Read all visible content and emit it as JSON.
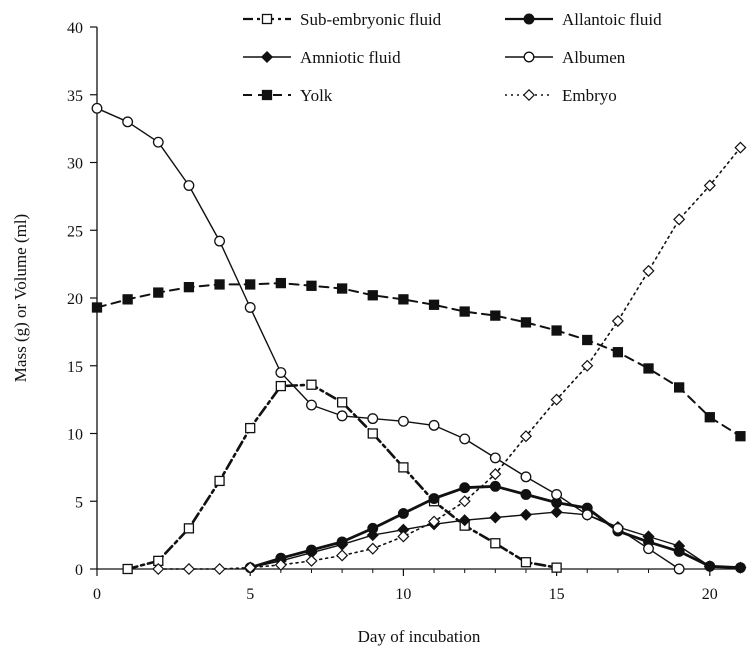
{
  "chart_data": {
    "type": "line",
    "xlabel": "Day of incubation",
    "ylabel": "Mass (g) or Volume (ml)",
    "xlim": [
      0,
      21
    ],
    "ylim": [
      0,
      40
    ],
    "x_ticks": [
      "0",
      "5",
      "10",
      "15",
      "20"
    ],
    "y_ticks": [
      "0",
      "5",
      "10",
      "15",
      "20",
      "25",
      "30",
      "35",
      "40"
    ],
    "grid": false,
    "legend_position": "top-right",
    "series": [
      {
        "name": "Sub-embryonic fluid",
        "style": "dashdot",
        "marker": "open-square",
        "color": "#111111",
        "points": [
          [
            1,
            0
          ],
          [
            2,
            0.6
          ],
          [
            3,
            3.0
          ],
          [
            4,
            6.5
          ],
          [
            5,
            10.4
          ],
          [
            6,
            13.5
          ],
          [
            7,
            13.6
          ],
          [
            8,
            12.3
          ],
          [
            9,
            10.0
          ],
          [
            10,
            7.5
          ],
          [
            11,
            5.0
          ],
          [
            12,
            3.2
          ],
          [
            13,
            1.9
          ],
          [
            14,
            0.5
          ],
          [
            15,
            0.1
          ]
        ]
      },
      {
        "name": "Allantoic fluid",
        "style": "solid-thick",
        "marker": "filled-circle",
        "color": "#111111",
        "points": [
          [
            5,
            0.1
          ],
          [
            6,
            0.8
          ],
          [
            7,
            1.4
          ],
          [
            8,
            2.0
          ],
          [
            9,
            3.0
          ],
          [
            10,
            4.1
          ],
          [
            11,
            5.2
          ],
          [
            12,
            6.0
          ],
          [
            13,
            6.1
          ],
          [
            14,
            5.5
          ],
          [
            15,
            4.9
          ],
          [
            16,
            4.5
          ],
          [
            17,
            2.8
          ],
          [
            18,
            2.0
          ],
          [
            19,
            1.3
          ],
          [
            20,
            0.2
          ],
          [
            21,
            0.1
          ]
        ]
      },
      {
        "name": "Amniotic fluid",
        "style": "solid",
        "marker": "filled-diamond",
        "color": "#111111",
        "points": [
          [
            5,
            0.1
          ],
          [
            6,
            0.6
          ],
          [
            7,
            1.2
          ],
          [
            8,
            1.8
          ],
          [
            9,
            2.5
          ],
          [
            10,
            2.9
          ],
          [
            11,
            3.3
          ],
          [
            12,
            3.6
          ],
          [
            13,
            3.8
          ],
          [
            14,
            4.0
          ],
          [
            15,
            4.2
          ],
          [
            16,
            4.0
          ],
          [
            17,
            3.1
          ],
          [
            18,
            2.4
          ],
          [
            19,
            1.7
          ],
          [
            20,
            0.2
          ],
          [
            21,
            0.1
          ]
        ]
      },
      {
        "name": "Albumen",
        "style": "solid",
        "marker": "open-circle",
        "color": "#111111",
        "points": [
          [
            0,
            34.0
          ],
          [
            1,
            33.0
          ],
          [
            2,
            31.5
          ],
          [
            3,
            28.3
          ],
          [
            4,
            24.2
          ],
          [
            5,
            19.3
          ],
          [
            6,
            14.5
          ],
          [
            7,
            12.1
          ],
          [
            8,
            11.3
          ],
          [
            9,
            11.1
          ],
          [
            10,
            10.9
          ],
          [
            11,
            10.6
          ],
          [
            12,
            9.6
          ],
          [
            13,
            8.2
          ],
          [
            14,
            6.8
          ],
          [
            15,
            5.5
          ],
          [
            16,
            4.0
          ],
          [
            17,
            3.0
          ],
          [
            18,
            1.5
          ],
          [
            19,
            0.0
          ]
        ]
      },
      {
        "name": "Yolk",
        "style": "dashed",
        "marker": "filled-square",
        "color": "#111111",
        "points": [
          [
            0,
            19.3
          ],
          [
            1,
            19.9
          ],
          [
            2,
            20.4
          ],
          [
            3,
            20.8
          ],
          [
            4,
            21.0
          ],
          [
            5,
            21.0
          ],
          [
            6,
            21.1
          ],
          [
            7,
            20.9
          ],
          [
            8,
            20.7
          ],
          [
            9,
            20.2
          ],
          [
            10,
            19.9
          ],
          [
            11,
            19.5
          ],
          [
            12,
            19.0
          ],
          [
            13,
            18.7
          ],
          [
            14,
            18.2
          ],
          [
            15,
            17.6
          ],
          [
            16,
            16.9
          ],
          [
            17,
            16.0
          ],
          [
            18,
            14.8
          ],
          [
            19,
            13.4
          ],
          [
            20,
            11.2
          ],
          [
            21,
            9.8
          ]
        ]
      },
      {
        "name": "Embryo",
        "style": "dotted",
        "marker": "open-diamond",
        "color": "#111111",
        "points": [
          [
            2,
            0.0
          ],
          [
            3,
            0.0
          ],
          [
            4,
            0.0
          ],
          [
            5,
            0.1
          ],
          [
            6,
            0.3
          ],
          [
            7,
            0.6
          ],
          [
            8,
            1.0
          ],
          [
            9,
            1.5
          ],
          [
            10,
            2.4
          ],
          [
            11,
            3.5
          ],
          [
            12,
            5.0
          ],
          [
            13,
            7.0
          ],
          [
            14,
            9.8
          ],
          [
            15,
            12.5
          ],
          [
            16,
            15.0
          ],
          [
            17,
            18.3
          ],
          [
            18,
            22.0
          ],
          [
            19,
            25.8
          ],
          [
            20,
            28.3
          ],
          [
            21,
            31.1
          ]
        ]
      }
    ]
  }
}
